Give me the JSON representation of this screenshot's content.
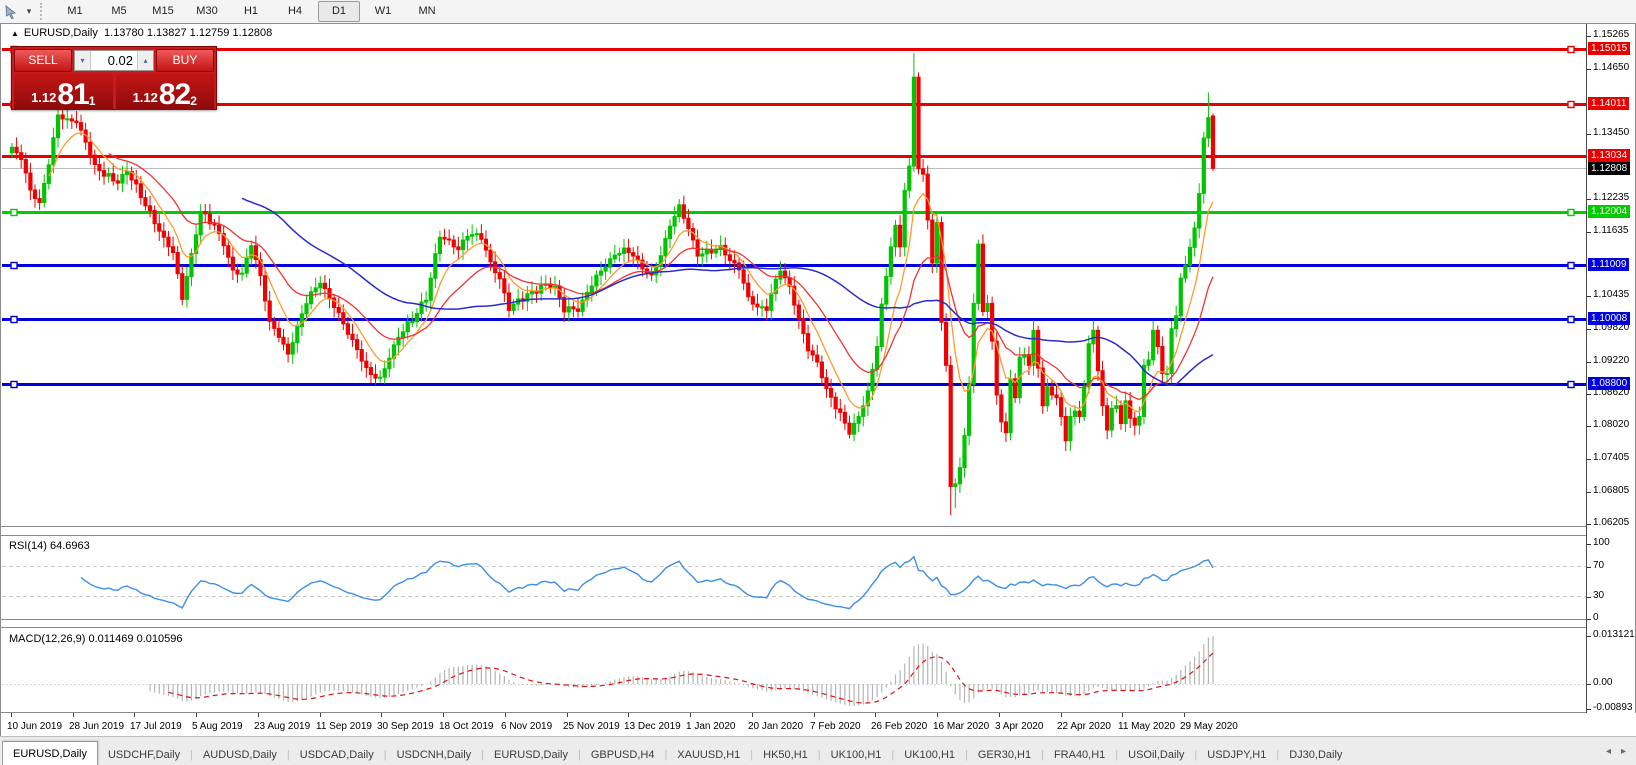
{
  "toolbar": {
    "timeframes": [
      "M1",
      "M5",
      "M15",
      "M30",
      "H1",
      "H4",
      "D1",
      "W1",
      "MN"
    ],
    "active_timeframe": "D1"
  },
  "chart": {
    "title_symbol": "EURUSD,Daily",
    "title_ohlc": "1.13780 1.13827 1.12759 1.12808",
    "collapse_triangle": "▲",
    "trade_panel": {
      "sell_label": "SELL",
      "buy_label": "BUY",
      "volume": "0.02",
      "sell_price_small": "1.12",
      "sell_price_big": "81",
      "sell_price_sup": "1",
      "buy_price_small": "1.12",
      "buy_price_big": "82",
      "buy_price_sup": "2"
    },
    "price_axis_ticks": [
      "1.15265",
      "1.14650",
      "1.13450",
      "1.12235",
      "1.11635",
      "1.10435",
      "1.09820",
      "1.09220",
      "1.08620",
      "1.08020",
      "1.07405",
      "1.06805",
      "1.06205"
    ],
    "current_price": {
      "label": "1.12808",
      "price": 1.12808,
      "bg": "#000000"
    },
    "hlines": [
      {
        "label": "1.15015",
        "price": 1.15015,
        "color": "#e80000",
        "handles": true
      },
      {
        "label": "1.14011",
        "price": 1.14011,
        "color": "#e80000",
        "handles": true
      },
      {
        "label": "1.13034",
        "price": 1.13034,
        "color": "#e80000",
        "handles": false
      },
      {
        "label": "1.12004",
        "price": 1.12004,
        "color": "#00cc00",
        "handles": true
      },
      {
        "label": "1.11009",
        "price": 1.11009,
        "color": "#0000dd",
        "handles": true
      },
      {
        "label": "1.10008",
        "price": 1.10008,
        "color": "#0000dd",
        "handles": true
      },
      {
        "label": "1.08800",
        "price": 1.088,
        "color": "#0000dd",
        "handles": true
      }
    ],
    "date_axis": [
      "10 Jun 2019",
      "28 Jun 2019",
      "17 Jul 2019",
      "5 Aug 2019",
      "23 Aug 2019",
      "11 Sep 2019",
      "30 Sep 2019",
      "18 Oct 2019",
      "6 Nov 2019",
      "25 Nov 2019",
      "13 Dec 2019",
      "1 Jan 2020",
      "20 Jan 2020",
      "7 Feb 2020",
      "26 Feb 2020",
      "16 Mar 2020",
      "3 Apr 2020",
      "22 Apr 2020",
      "11 May 2020",
      "29 May 2020"
    ]
  },
  "rsi": {
    "label": "RSI(14) 64.6963",
    "axis": [
      {
        "label": "100",
        "value": 100
      },
      {
        "label": "70",
        "value": 70
      },
      {
        "label": "30",
        "value": 30
      },
      {
        "label": "0",
        "value": 0
      }
    ],
    "line_color": "#3b8fe8"
  },
  "macd": {
    "label": "MACD(12,26,9) 0.011469 0.010596",
    "axis_top": "0.013121",
    "axis_zero": "0.00",
    "axis_bottom": "-0.00893",
    "hist_color": "#b5b5b5",
    "signal_color": "#e01010"
  },
  "tabs": {
    "items": [
      "EURUSD,Daily",
      "USDCHF,Daily",
      "AUDUSD,Daily",
      "USDCAD,Daily",
      "USDCNH,Daily",
      "EURUSD,Daily",
      "GBPUSD,H4",
      "XAUUSD,H1",
      "HK50,H1",
      "UK100,H1",
      "UK100,H1",
      "GER30,H1",
      "FRA40,H1",
      "USOil,Daily",
      "USDJPY,H1",
      "DJ30,Daily"
    ],
    "active_index": 0,
    "scroll_left": "◂",
    "scroll_right": "▸"
  },
  "chart_data": {
    "type": "candlestick",
    "symbol": "EURUSD",
    "timeframe": "Daily",
    "last_candle": {
      "open": 1.1378,
      "high": 1.13827,
      "low": 1.12759,
      "close": 1.12808
    },
    "ma_colors": {
      "fast": "#ff9a2e",
      "medium": "#f03434",
      "slow": "#2a2acc"
    },
    "up_color": "#00c400",
    "down_color": "#f00000",
    "num_candles": 262,
    "close_anchors": [
      [
        0,
        1.1318
      ],
      [
        2,
        1.13
      ],
      [
        4,
        1.124
      ],
      [
        6,
        1.1215
      ],
      [
        8,
        1.129
      ],
      [
        10,
        1.138
      ],
      [
        12,
        1.137
      ],
      [
        14,
        1.1368
      ],
      [
        16,
        1.133
      ],
      [
        18,
        1.1285
      ],
      [
        20,
        1.127
      ],
      [
        23,
        1.1255
      ],
      [
        25,
        1.1278
      ],
      [
        28,
        1.123
      ],
      [
        31,
        1.118
      ],
      [
        33,
        1.115
      ],
      [
        35,
        1.1125
      ],
      [
        37,
        1.104
      ],
      [
        39,
        1.112
      ],
      [
        41,
        1.12
      ],
      [
        44,
        1.1175
      ],
      [
        46,
        1.114
      ],
      [
        48,
        1.109
      ],
      [
        50,
        1.1085
      ],
      [
        52,
        1.114
      ],
      [
        54,
        1.108
      ],
      [
        56,
        1.0995
      ],
      [
        58,
        1.097
      ],
      [
        60,
        1.0935
      ],
      [
        62,
        1.0985
      ],
      [
        64,
        1.1035
      ],
      [
        67,
        1.107
      ],
      [
        69,
        1.104
      ],
      [
        71,
        1.101
      ],
      [
        73,
        1.0975
      ],
      [
        75,
        1.0945
      ],
      [
        77,
        1.0905
      ],
      [
        80,
        1.089
      ],
      [
        82,
        1.093
      ],
      [
        84,
        1.097
      ],
      [
        87,
        1.1
      ],
      [
        90,
        1.104
      ],
      [
        93,
        1.1155
      ],
      [
        95,
        1.1145
      ],
      [
        97,
        1.113
      ],
      [
        99,
        1.116
      ],
      [
        102,
        1.1152
      ],
      [
        104,
        1.1105
      ],
      [
        106,
        1.1075
      ],
      [
        108,
        1.102
      ],
      [
        110,
        1.1035
      ],
      [
        113,
        1.105
      ],
      [
        116,
        1.1065
      ],
      [
        118,
        1.106
      ],
      [
        120,
        1.102
      ],
      [
        123,
        1.1018
      ],
      [
        125,
        1.105
      ],
      [
        127,
        1.108
      ],
      [
        129,
        1.11
      ],
      [
        131,
        1.112
      ],
      [
        133,
        1.113
      ],
      [
        135,
        1.112
      ],
      [
        137,
        1.1095
      ],
      [
        139,
        1.108
      ],
      [
        141,
        1.112
      ],
      [
        143,
        1.1175
      ],
      [
        145,
        1.121
      ],
      [
        147,
        1.117
      ],
      [
        149,
        1.112
      ],
      [
        151,
        1.1125
      ],
      [
        154,
        1.1135
      ],
      [
        156,
        1.111
      ],
      [
        158,
        1.1095
      ],
      [
        160,
        1.104
      ],
      [
        162,
        1.1023
      ],
      [
        164,
        1.102
      ],
      [
        166,
        1.1075
      ],
      [
        167,
        1.1093
      ],
      [
        169,
        1.106
      ],
      [
        171,
        1.1
      ],
      [
        173,
        1.0945
      ],
      [
        175,
        1.092
      ],
      [
        177,
        1.087
      ],
      [
        179,
        1.084
      ],
      [
        182,
        1.079
      ],
      [
        184,
        1.082
      ],
      [
        186,
        1.0865
      ],
      [
        188,
        1.095
      ],
      [
        189,
        1.1026
      ],
      [
        191,
        1.1135
      ],
      [
        192,
        1.1175
      ],
      [
        193,
        1.1135
      ],
      [
        194,
        1.124
      ],
      [
        195,
        1.1285
      ],
      [
        196,
        1.145
      ],
      [
        197,
        1.128
      ],
      [
        198,
        1.127
      ],
      [
        199,
        1.1185
      ],
      [
        200,
        1.1105
      ],
      [
        201,
        1.118
      ],
      [
        202,
        1.0995
      ],
      [
        203,
        1.0915
      ],
      [
        204,
        1.069
      ],
      [
        205,
        1.0695
      ],
      [
        206,
        1.0725
      ],
      [
        207,
        1.0785
      ],
      [
        208,
        1.088
      ],
      [
        209,
        1.103
      ],
      [
        210,
        1.114
      ],
      [
        211,
        1.1015
      ],
      [
        212,
        1.103
      ],
      [
        213,
        1.096
      ],
      [
        214,
        1.086
      ],
      [
        215,
        1.081
      ],
      [
        216,
        1.079
      ],
      [
        217,
        1.089
      ],
      [
        218,
        1.0855
      ],
      [
        219,
        1.093
      ],
      [
        220,
        1.0935
      ],
      [
        221,
        1.0915
      ],
      [
        222,
        1.098
      ],
      [
        223,
        1.091
      ],
      [
        224,
        1.084
      ],
      [
        225,
        1.0875
      ],
      [
        226,
        1.086
      ],
      [
        227,
        1.0855
      ],
      [
        228,
        1.082
      ],
      [
        229,
        1.0775
      ],
      [
        230,
        1.082
      ],
      [
        231,
        1.083
      ],
      [
        232,
        1.082
      ],
      [
        233,
        1.0875
      ],
      [
        234,
        1.0955
      ],
      [
        235,
        1.098
      ],
      [
        236,
        1.0905
      ],
      [
        237,
        1.084
      ],
      [
        238,
        1.0795
      ],
      [
        239,
        1.0835
      ],
      [
        240,
        1.084
      ],
      [
        241,
        1.0807
      ],
      [
        242,
        1.0849
      ],
      [
        243,
        1.0817
      ],
      [
        244,
        1.0804
      ],
      [
        245,
        1.082
      ],
      [
        246,
        1.0915
      ],
      [
        247,
        1.0925
      ],
      [
        248,
        1.098
      ],
      [
        249,
        1.095
      ],
      [
        250,
        1.09
      ],
      [
        251,
        1.09
      ],
      [
        252,
        1.0983
      ],
      [
        253,
        1.1007
      ],
      [
        254,
        1.1077
      ],
      [
        255,
        1.1101
      ],
      [
        256,
        1.1134
      ],
      [
        257,
        1.117
      ],
      [
        258,
        1.1234
      ],
      [
        259,
        1.1337
      ],
      [
        260,
        1.1375
      ],
      [
        261,
        1.1281
      ]
    ],
    "overrides": [
      {
        "i": 10,
        "h": 1.1412
      },
      {
        "i": 196,
        "h": 1.1495
      },
      {
        "i": 204,
        "l": 1.0637
      },
      {
        "i": 205,
        "l": 1.065
      },
      {
        "i": 260,
        "h": 1.1422
      },
      {
        "i": 261,
        "o": 1.1378,
        "h": 1.13827,
        "l": 1.12759,
        "c": 1.12808
      }
    ],
    "price_axis_range": {
      "top_tick": 1.15265,
      "bottom_tick": 1.06205
    }
  }
}
